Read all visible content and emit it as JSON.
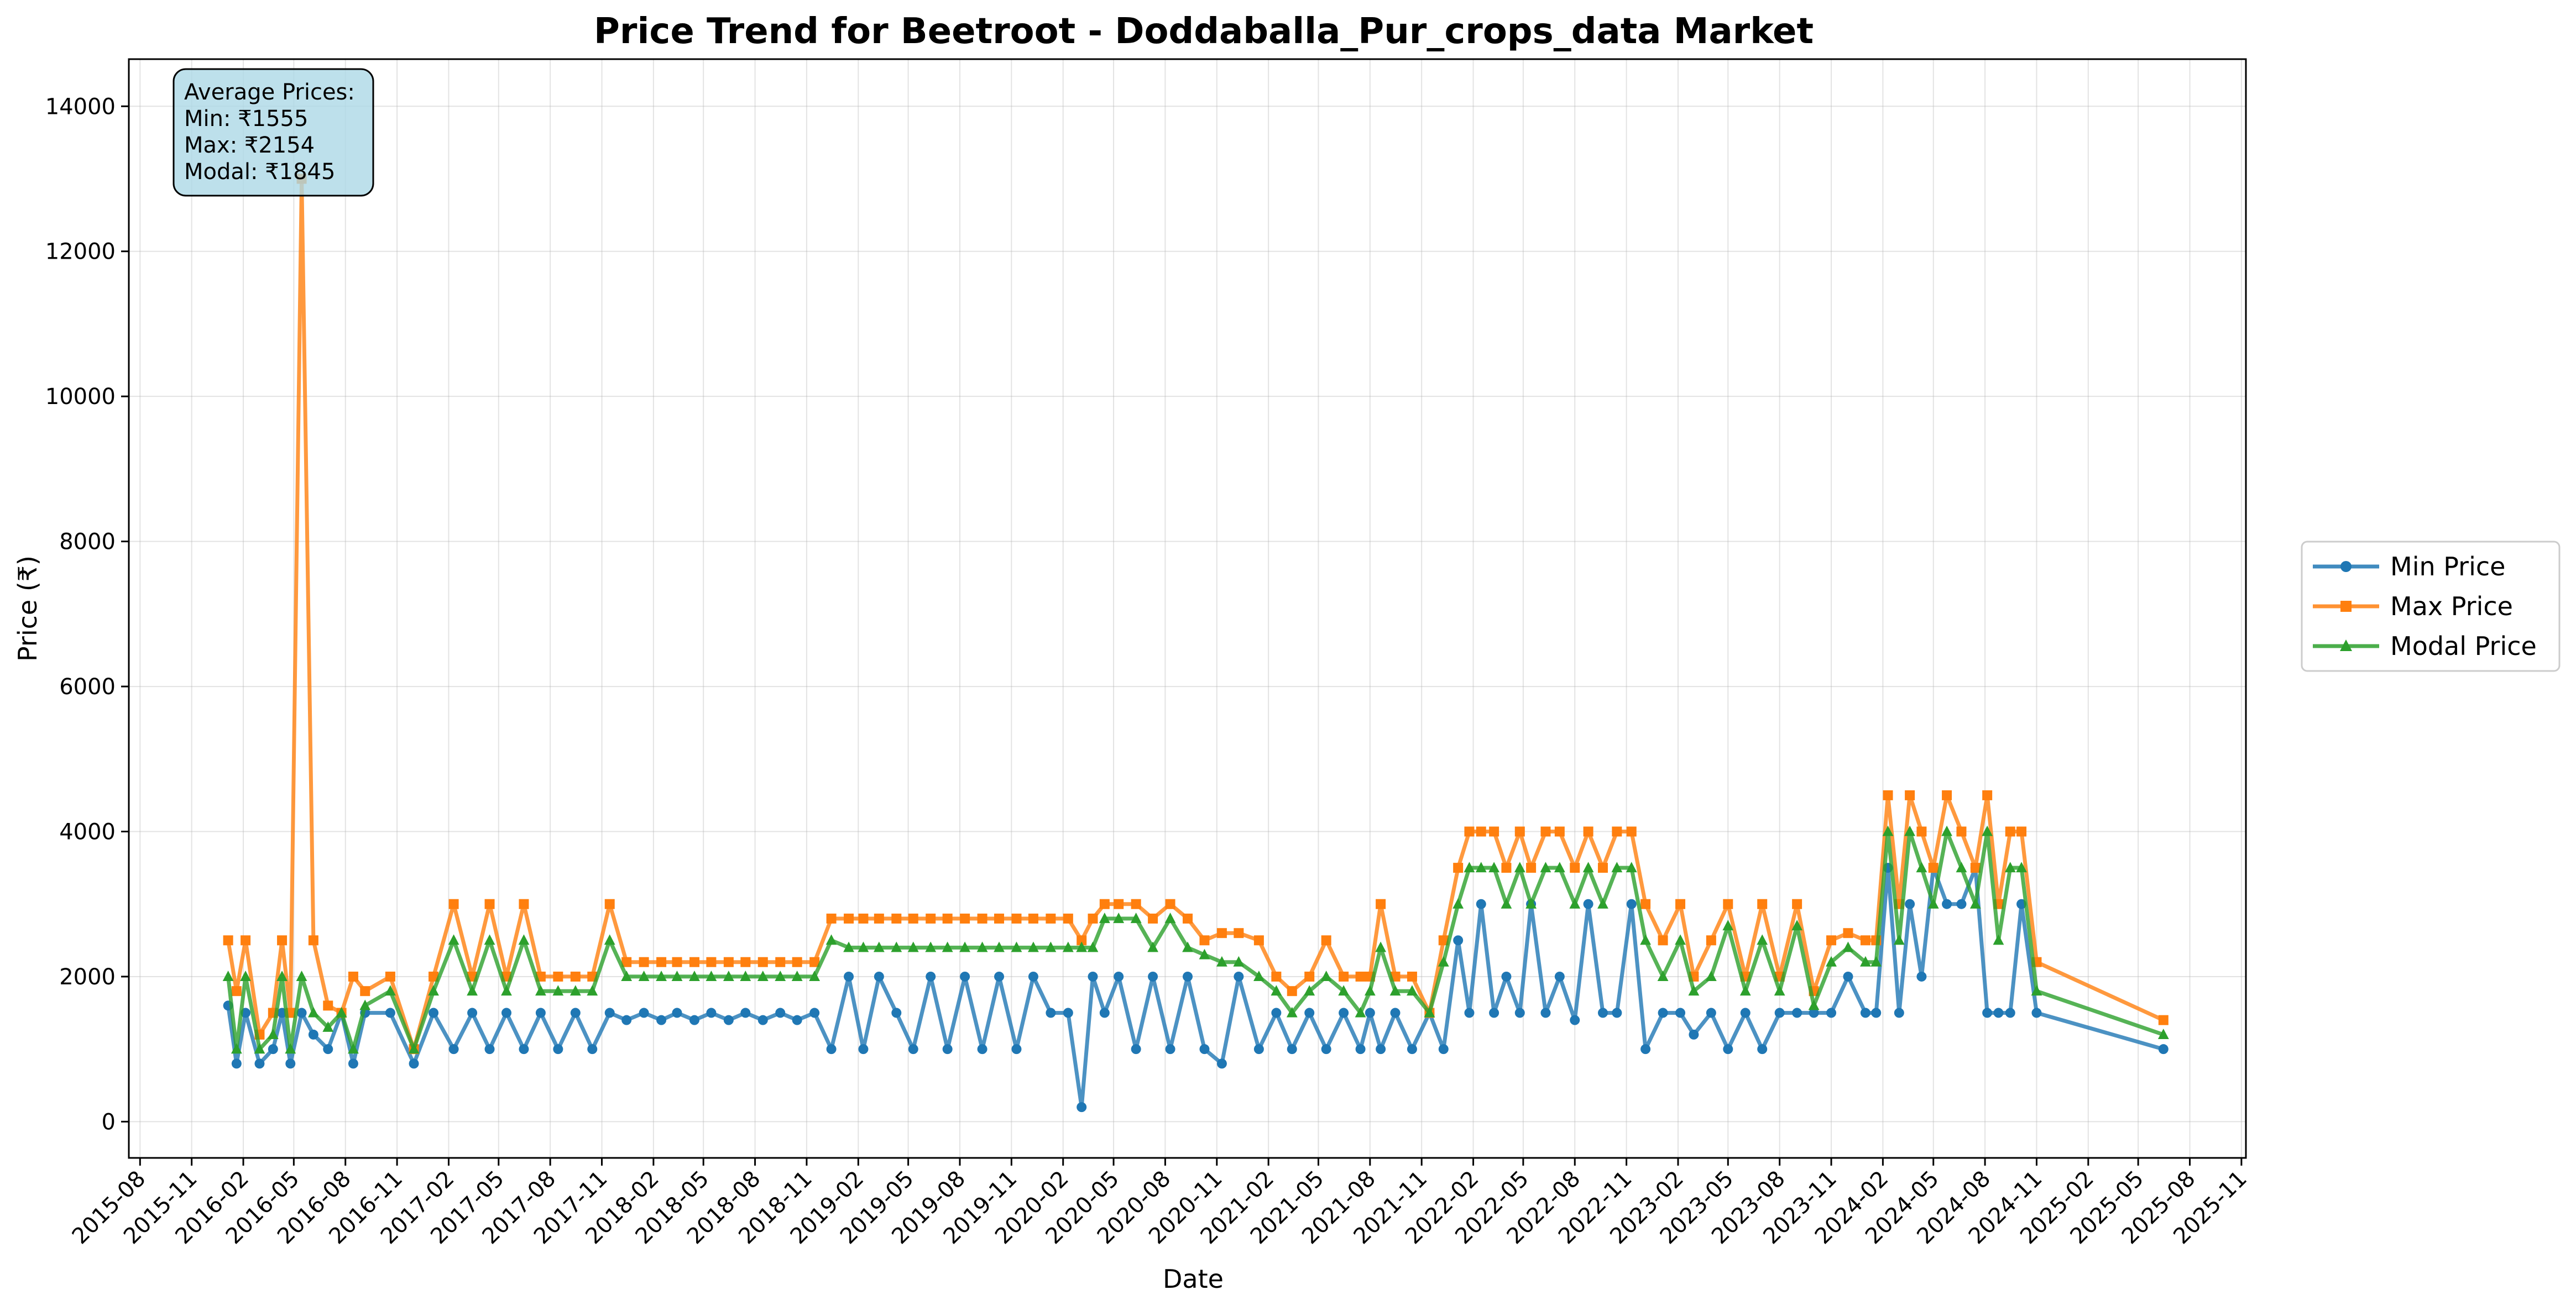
{
  "chart_data": {
    "type": "line",
    "title": "Price Trend for Beetroot - Doddaballa_Pur_crops_data Market",
    "xlabel": "Date",
    "ylabel": "Price (₹)",
    "xlim": [
      "2015-07-12",
      "2025-11-09"
    ],
    "ylim": [
      -500,
      14650
    ],
    "grid": true,
    "legend_position": "right",
    "yticks": [
      0,
      2000,
      4000,
      6000,
      8000,
      10000,
      12000,
      14000
    ],
    "xticks": [
      "2015-08",
      "2015-11",
      "2016-02",
      "2016-05",
      "2016-08",
      "2016-11",
      "2017-02",
      "2017-05",
      "2017-08",
      "2017-11",
      "2018-02",
      "2018-05",
      "2018-08",
      "2018-11",
      "2019-02",
      "2019-05",
      "2019-08",
      "2019-11",
      "2020-02",
      "2020-05",
      "2020-08",
      "2020-11",
      "2021-02",
      "2021-05",
      "2021-08",
      "2021-11",
      "2022-02",
      "2022-05",
      "2022-08",
      "2022-11",
      "2023-02",
      "2023-05",
      "2023-08",
      "2023-11",
      "2024-02",
      "2024-05",
      "2024-08",
      "2024-11",
      "2025-02",
      "2025-05",
      "2025-08",
      "2025-11"
    ],
    "annotation": {
      "lines": [
        "Average Prices:",
        "Min: ₹1555",
        "Max: ₹2154",
        "Modal: ₹1845"
      ]
    },
    "x": [
      "2016-01-05",
      "2016-01-20",
      "2016-02-05",
      "2016-03-01",
      "2016-03-25",
      "2016-04-10",
      "2016-04-25",
      "2016-05-15",
      "2016-06-05",
      "2016-07-01",
      "2016-07-25",
      "2016-08-15",
      "2016-09-05",
      "2016-10-20",
      "2016-12-01",
      "2017-01-05",
      "2017-02-10",
      "2017-03-15",
      "2017-04-15",
      "2017-05-15",
      "2017-06-15",
      "2017-07-15",
      "2017-08-15",
      "2017-09-15",
      "2017-10-15",
      "2017-11-15",
      "2017-12-15",
      "2018-01-15",
      "2018-02-15",
      "2018-03-15",
      "2018-04-15",
      "2018-05-15",
      "2018-06-15",
      "2018-07-15",
      "2018-08-15",
      "2018-09-15",
      "2018-10-15",
      "2018-11-15",
      "2018-12-15",
      "2019-01-15",
      "2019-02-10",
      "2019-03-10",
      "2019-04-10",
      "2019-05-10",
      "2019-06-10",
      "2019-07-10",
      "2019-08-10",
      "2019-09-10",
      "2019-10-10",
      "2019-11-10",
      "2019-12-10",
      "2020-01-10",
      "2020-02-10",
      "2020-03-05",
      "2020-03-25",
      "2020-04-15",
      "2020-05-10",
      "2020-06-10",
      "2020-07-10",
      "2020-08-10",
      "2020-09-10",
      "2020-10-10",
      "2020-11-10",
      "2020-12-10",
      "2021-01-15",
      "2021-02-15",
      "2021-03-15",
      "2021-04-15",
      "2021-05-15",
      "2021-06-15",
      "2021-07-15",
      "2021-08-01",
      "2021-08-20",
      "2021-09-15",
      "2021-10-15",
      "2021-11-15",
      "2021-12-10",
      "2022-01-05",
      "2022-01-25",
      "2022-02-15",
      "2022-03-10",
      "2022-04-01",
      "2022-04-25",
      "2022-05-15",
      "2022-06-10",
      "2022-07-05",
      "2022-08-01",
      "2022-08-25",
      "2022-09-20",
      "2022-10-15",
      "2022-11-10",
      "2022-12-05",
      "2023-01-05",
      "2023-02-05",
      "2023-03-01",
      "2023-04-01",
      "2023-05-01",
      "2023-06-01",
      "2023-07-01",
      "2023-08-01",
      "2023-09-01",
      "2023-10-01",
      "2023-11-01",
      "2023-12-01",
      "2024-01-01",
      "2024-01-20",
      "2024-02-10",
      "2024-03-01",
      "2024-03-20",
      "2024-04-10",
      "2024-05-01",
      "2024-05-25",
      "2024-06-20",
      "2024-07-15",
      "2024-08-05",
      "2024-08-25",
      "2024-09-15",
      "2024-10-05",
      "2024-11-01",
      "2025-06-15"
    ],
    "series": [
      {
        "name": "Min Price",
        "color": "#1f77b4",
        "marker": "circle",
        "values": [
          1600,
          800,
          1500,
          800,
          1000,
          1500,
          800,
          1500,
          1200,
          1000,
          1500,
          800,
          1500,
          1500,
          800,
          1500,
          1000,
          1500,
          1000,
          1500,
          1000,
          1500,
          1000,
          1500,
          1000,
          1500,
          1400,
          1500,
          1400,
          1500,
          1400,
          1500,
          1400,
          1500,
          1400,
          1500,
          1400,
          1500,
          1000,
          2000,
          1000,
          2000,
          1500,
          1000,
          2000,
          1000,
          2000,
          1000,
          2000,
          1000,
          2000,
          1500,
          1500,
          200,
          2000,
          1500,
          2000,
          1000,
          2000,
          1000,
          2000,
          1000,
          800,
          2000,
          1000,
          1500,
          1000,
          1500,
          1000,
          1500,
          1000,
          1500,
          1000,
          1500,
          1000,
          1500,
          1000,
          2500,
          1500,
          3000,
          1500,
          2000,
          1500,
          3000,
          1500,
          2000,
          1400,
          3000,
          1500,
          1500,
          3000,
          1000,
          1500,
          1500,
          1200,
          1500,
          1000,
          1500,
          1000,
          1500,
          1500,
          1500,
          1500,
          2000,
          1500,
          1500,
          3500,
          1500,
          3000,
          2000,
          3500,
          3000,
          3000,
          3500,
          1500,
          1500,
          1500,
          3000,
          1500,
          1000
        ]
      },
      {
        "name": "Max Price",
        "color": "#ff7f0e",
        "marker": "square",
        "values": [
          2500,
          1800,
          2500,
          1200,
          1500,
          2500,
          1500,
          13000,
          2500,
          1600,
          1500,
          2000,
          1800,
          2000,
          1000,
          2000,
          3000,
          2000,
          3000,
          2000,
          3000,
          2000,
          2000,
          2000,
          2000,
          3000,
          2200,
          2200,
          2200,
          2200,
          2200,
          2200,
          2200,
          2200,
          2200,
          2200,
          2200,
          2200,
          2800,
          2800,
          2800,
          2800,
          2800,
          2800,
          2800,
          2800,
          2800,
          2800,
          2800,
          2800,
          2800,
          2800,
          2800,
          2500,
          2800,
          3000,
          3000,
          3000,
          2800,
          3000,
          2800,
          2500,
          2600,
          2600,
          2500,
          2000,
          1800,
          2000,
          2500,
          2000,
          2000,
          2000,
          3000,
          2000,
          2000,
          1500,
          2500,
          3500,
          4000,
          4000,
          4000,
          3500,
          4000,
          3500,
          4000,
          4000,
          3500,
          4000,
          3500,
          4000,
          4000,
          3000,
          2500,
          3000,
          2000,
          2500,
          3000,
          2000,
          3000,
          2000,
          3000,
          1800,
          2500,
          2600,
          2500,
          2500,
          4500,
          3000,
          4500,
          4000,
          3500,
          4500,
          4000,
          3500,
          4500,
          3000,
          4000,
          4000,
          2200,
          1400
        ]
      },
      {
        "name": "Modal Price",
        "color": "#2ca02c",
        "marker": "triangle",
        "values": [
          2000,
          1000,
          2000,
          1000,
          1200,
          2000,
          1000,
          2000,
          1500,
          1300,
          1500,
          1000,
          1600,
          1800,
          1000,
          1800,
          2500,
          1800,
          2500,
          1800,
          2500,
          1800,
          1800,
          1800,
          1800,
          2500,
          2000,
          2000,
          2000,
          2000,
          2000,
          2000,
          2000,
          2000,
          2000,
          2000,
          2000,
          2000,
          2500,
          2400,
          2400,
          2400,
          2400,
          2400,
          2400,
          2400,
          2400,
          2400,
          2400,
          2400,
          2400,
          2400,
          2400,
          2400,
          2400,
          2800,
          2800,
          2800,
          2400,
          2800,
          2400,
          2300,
          2200,
          2200,
          2000,
          1800,
          1500,
          1800,
          2000,
          1800,
          1500,
          1800,
          2400,
          1800,
          1800,
          1500,
          2200,
          3000,
          3500,
          3500,
          3500,
          3000,
          3500,
          3000,
          3500,
          3500,
          3000,
          3500,
          3000,
          3500,
          3500,
          2500,
          2000,
          2500,
          1800,
          2000,
          2700,
          1800,
          2500,
          1800,
          2700,
          1600,
          2200,
          2400,
          2200,
          2200,
          4000,
          2500,
          4000,
          3500,
          3000,
          4000,
          3500,
          3000,
          4000,
          2500,
          3500,
          3500,
          1800,
          1200
        ]
      }
    ]
  }
}
